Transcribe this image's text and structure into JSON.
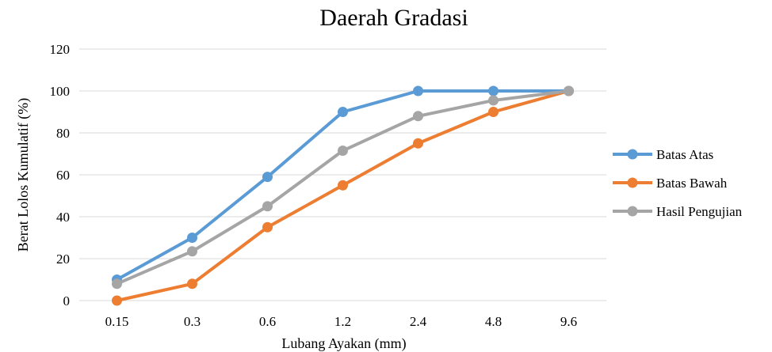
{
  "chart_data": {
    "type": "line",
    "title": "Daerah Gradasi",
    "xlabel": "Lubang Ayakan (mm)",
    "ylabel": "Berat Lolos Kumulatif (%)",
    "categories": [
      "0.15",
      "0.3",
      "0.6",
      "1.2",
      "2.4",
      "4.8",
      "9.6"
    ],
    "ylim": [
      0,
      120
    ],
    "yticks": [
      0,
      20,
      40,
      60,
      80,
      100,
      120
    ],
    "grid": true,
    "legend_position": "right",
    "series": [
      {
        "name": "Batas Atas",
        "color": "#5b9bd5",
        "values": [
          10,
          30,
          59,
          90,
          100,
          100,
          100
        ]
      },
      {
        "name": "Batas Bawah",
        "color": "#ed7d31",
        "values": [
          0,
          8,
          35,
          55,
          75,
          90,
          100
        ]
      },
      {
        "name": "Hasil Pengujian",
        "color": "#a5a5a5",
        "values": [
          8,
          23.5,
          45,
          71.5,
          88,
          95.5,
          100
        ]
      }
    ]
  }
}
